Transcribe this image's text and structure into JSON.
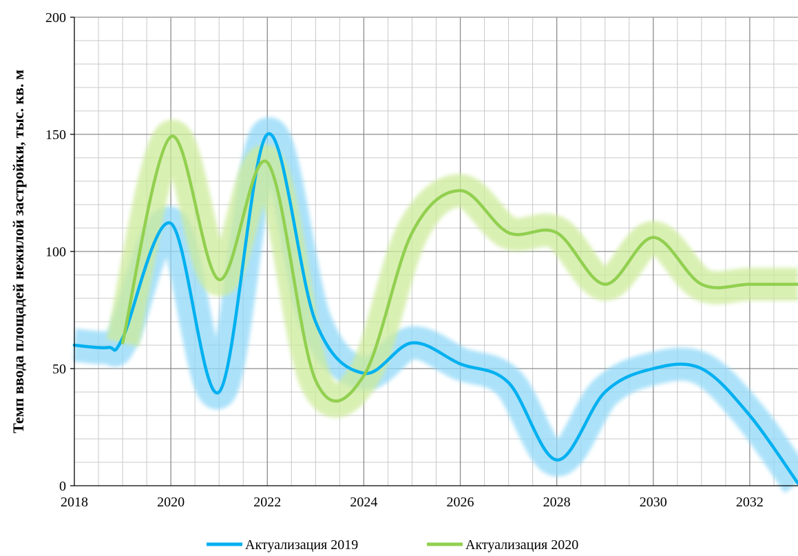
{
  "chart_data": {
    "type": "line",
    "title": "",
    "xlabel": "",
    "ylabel": "Темп ввода площадей нежилой застройки, тыс. кв. м",
    "xlim": [
      2018,
      2033
    ],
    "ylim": [
      0,
      200
    ],
    "x_ticks": [
      2018,
      2020,
      2022,
      2024,
      2026,
      2028,
      2030,
      2032
    ],
    "y_ticks": [
      0,
      50,
      100,
      150,
      200
    ],
    "grid": true,
    "legend": "bottom",
    "series": [
      {
        "name": "Актуализация 2019",
        "color": "#00B0F0",
        "glow_color": "#8FD8F8",
        "x": [
          2018,
          2018.7,
          2019,
          2020,
          2021,
          2022,
          2023,
          2024,
          2025,
          2026,
          2027,
          2028,
          2029,
          2030,
          2031,
          2032,
          2033
        ],
        "y": [
          60,
          59,
          63,
          112,
          40,
          150,
          70,
          48,
          61,
          52,
          44,
          11,
          40,
          50,
          50,
          30,
          1
        ]
      },
      {
        "name": "Актуализация 2020",
        "color": "#92D050",
        "glow_color": "#CDEB9A",
        "x": [
          2019,
          2020,
          2021,
          2022,
          2023,
          2024,
          2025,
          2026,
          2027,
          2028,
          2029,
          2030,
          2031,
          2032,
          2033
        ],
        "y": [
          61,
          149,
          88,
          138,
          45,
          47,
          108,
          126,
          108,
          108,
          86,
          106,
          86,
          86,
          86
        ]
      }
    ]
  }
}
